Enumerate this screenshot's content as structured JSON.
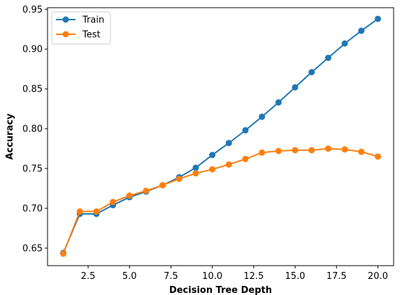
{
  "chart_data": {
    "type": "line",
    "title": "",
    "xlabel": "Decision Tree Depth",
    "ylabel": "Accuracy",
    "xlim": [
      0.05,
      20.95
    ],
    "ylim": [
      0.628,
      0.952
    ],
    "xticks": [
      2.5,
      5.0,
      7.5,
      10.0,
      12.5,
      15.0,
      17.5,
      20.0
    ],
    "xtick_labels": [
      "2.5",
      "5.0",
      "7.5",
      "10.0",
      "12.5",
      "15.0",
      "17.5",
      "20.0"
    ],
    "yticks": [
      0.65,
      0.7,
      0.75,
      0.8,
      0.85,
      0.9,
      0.95
    ],
    "ytick_labels": [
      "0.65",
      "0.70",
      "0.75",
      "0.80",
      "0.85",
      "0.90",
      "0.95"
    ],
    "grid": false,
    "legend_position": "top-left",
    "x": [
      1,
      2,
      3,
      4,
      5,
      6,
      7,
      8,
      9,
      10,
      11,
      12,
      13,
      14,
      15,
      16,
      17,
      18,
      19,
      20
    ],
    "series": [
      {
        "name": "Train",
        "color": "#1f77b4",
        "marker": "circle",
        "values": [
          0.644,
          0.693,
          0.693,
          0.704,
          0.714,
          0.721,
          0.729,
          0.739,
          0.751,
          0.767,
          0.782,
          0.798,
          0.815,
          0.833,
          0.852,
          0.871,
          0.889,
          0.907,
          0.923,
          0.938
        ]
      },
      {
        "name": "Test",
        "color": "#ff7f0e",
        "marker": "circle",
        "values": [
          0.643,
          0.696,
          0.696,
          0.708,
          0.716,
          0.722,
          0.729,
          0.737,
          0.744,
          0.749,
          0.755,
          0.762,
          0.77,
          0.772,
          0.773,
          0.773,
          0.775,
          0.774,
          0.771,
          0.765
        ]
      }
    ]
  }
}
